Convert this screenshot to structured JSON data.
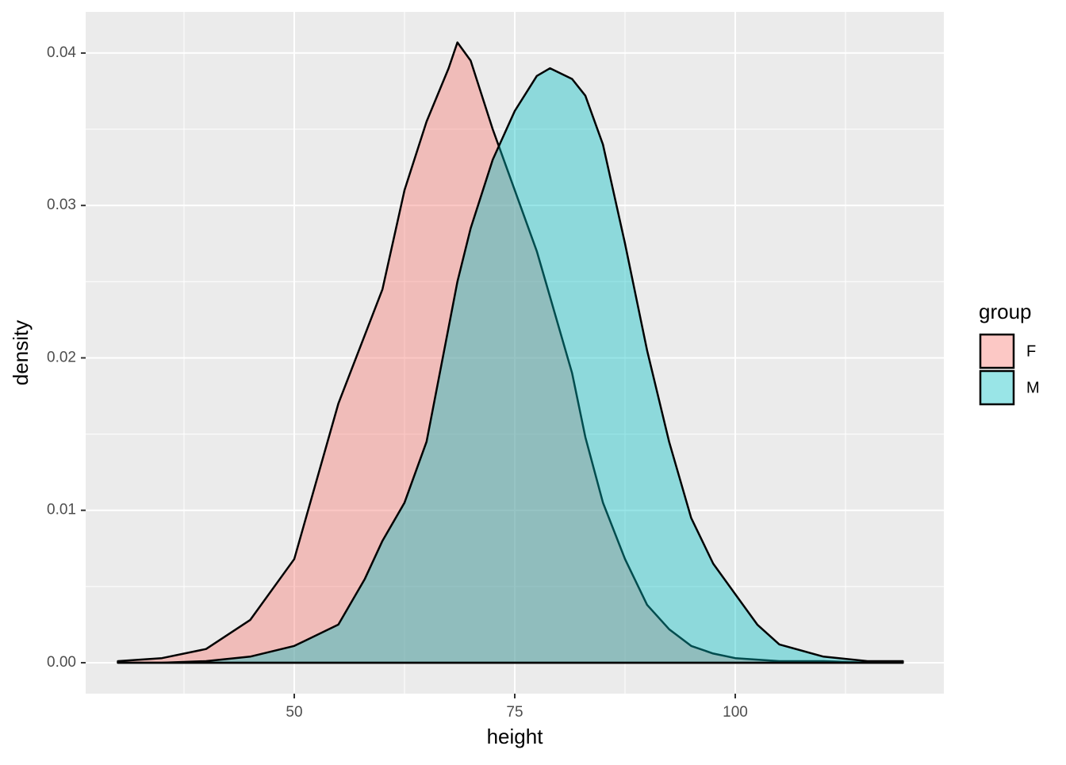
{
  "chart_data": {
    "type": "density",
    "x_label": "height",
    "y_label": "density",
    "legend_title": "group",
    "x": [
      30,
      35,
      40,
      45,
      50,
      55,
      58,
      60,
      62.5,
      65,
      67.5,
      68.5,
      70,
      72.5,
      75,
      77.5,
      79,
      81.5,
      83,
      85,
      87.5,
      90,
      92.5,
      95,
      97.5,
      100,
      102.5,
      105,
      110,
      115,
      119
    ],
    "series": [
      {
        "name": "F",
        "color": "#F8766D",
        "values": [
          0.0001,
          0.0003,
          0.0009,
          0.0028,
          0.0068,
          0.017,
          0.0215,
          0.0245,
          0.031,
          0.0355,
          0.039,
          0.0407,
          0.0395,
          0.035,
          0.031,
          0.027,
          0.024,
          0.019,
          0.0148,
          0.0105,
          0.0068,
          0.0038,
          0.0022,
          0.0011,
          0.0006,
          0.0003,
          0.0002,
          0.0001,
          0.0001,
          0,
          0
        ]
      },
      {
        "name": "M",
        "color": "#00BFC4",
        "values": [
          0,
          0,
          0.0001,
          0.0004,
          0.0011,
          0.0025,
          0.0055,
          0.008,
          0.0105,
          0.0145,
          0.022,
          0.025,
          0.0285,
          0.033,
          0.0362,
          0.0385,
          0.039,
          0.0383,
          0.0372,
          0.034,
          0.0275,
          0.0205,
          0.0145,
          0.0095,
          0.0065,
          0.0045,
          0.0025,
          0.0012,
          0.0004,
          0.0001,
          0.0001
        ]
      }
    ],
    "xlim": [
      26.35,
      123.65
    ],
    "xticks": [
      50,
      75,
      100
    ],
    "ylim": [
      -0.00203,
      0.0427
    ],
    "yticks": [
      {
        "value": 0,
        "label": "0.00"
      },
      0.01,
      0.02,
      0.03,
      0.04
    ],
    "grid": true,
    "legend": "right"
  }
}
